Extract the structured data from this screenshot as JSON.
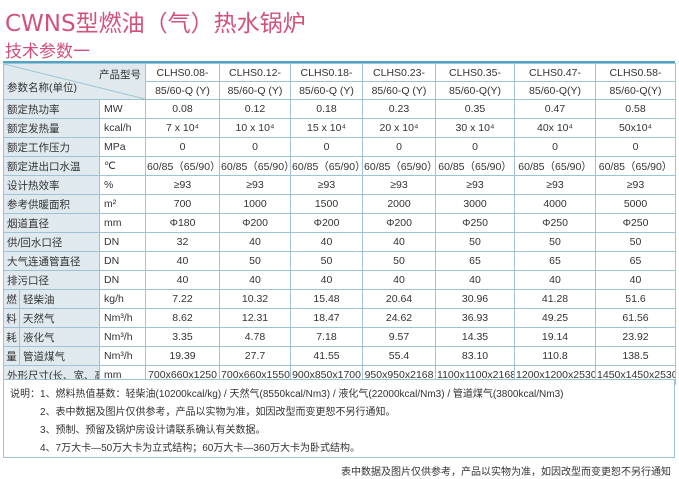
{
  "title": "CWNS型燃油（气）热水锅炉",
  "subtitle": "技术参数一",
  "table": {
    "header_product_label": "产品型号",
    "header_param_label": "参数名称(单位)",
    "models": [
      [
        "CLHS0.08-",
        "85/60-Q (Y)"
      ],
      [
        "CLHS0.12-",
        "85/60-Q (Y)"
      ],
      [
        "CLHS0.18-",
        "85/60-Q (Y)"
      ],
      [
        "CLHS0.23-",
        "85/60-Q (Y)"
      ],
      [
        "CLHS0.35-",
        "85/60-Q(Y)"
      ],
      [
        "CLHS0.47-",
        "85/60-Q(Y)"
      ],
      [
        "CLHS0.58-",
        "85/60-Q(Y)"
      ]
    ],
    "rows": [
      {
        "name": "额定热功率",
        "unit": "MW",
        "values": [
          "0.08",
          "0.12",
          "0.18",
          "0.23",
          "0.35",
          "0.47",
          "0.58"
        ]
      },
      {
        "name": "额定发热量",
        "unit": "kcal/h",
        "values": [
          "7 x 10⁴",
          "10 x 10⁴",
          "15 x 10⁴",
          "20 x 10⁴",
          "30 x 10⁴",
          "40x 10⁴",
          "50x10⁴"
        ]
      },
      {
        "name": "额定工作压力",
        "unit": "MPa",
        "values": [
          "0",
          "0",
          "0",
          "0",
          "0",
          "0",
          "0"
        ]
      },
      {
        "name": "额定进出口水温",
        "unit": "℃",
        "values": [
          "60/85（65/90）",
          "60/85（65/90）",
          "60/85（65/90）",
          "60/85（65/90）",
          "60/85（65/90）",
          "60/85（65/90）",
          "60/85（65/90）"
        ]
      },
      {
        "name": "设计热效率",
        "unit": "%",
        "values": [
          "≥93",
          "≥93",
          "≥93",
          "≥93",
          "≥93",
          "≥93",
          "≥93"
        ]
      },
      {
        "name": "参考供暖面积",
        "unit": "m²",
        "values": [
          "700",
          "1000",
          "1500",
          "2000",
          "3000",
          "4000",
          "5000"
        ]
      },
      {
        "name": "烟道直径",
        "unit": "mm",
        "values": [
          "Φ180",
          "Φ200",
          "Φ200",
          "Φ200",
          "Φ250",
          "Φ250",
          "Φ250"
        ]
      },
      {
        "name": "供/回水口径",
        "unit": "DN",
        "values": [
          "32",
          "40",
          "40",
          "40",
          "50",
          "50",
          "50"
        ]
      },
      {
        "name": "大气连通管直径",
        "unit": "DN",
        "values": [
          "40",
          "50",
          "50",
          "50",
          "65",
          "65",
          "65"
        ]
      },
      {
        "name": "排污口径",
        "unit": "DN",
        "values": [
          "40",
          "40",
          "40",
          "40",
          "40",
          "40",
          "40"
        ]
      }
    ],
    "fuel_label_chars": [
      "燃",
      "料",
      "耗",
      "量"
    ],
    "fuel_rows": [
      {
        "name": "轻柴油",
        "unit": "kg/h",
        "values": [
          "7.22",
          "10.32",
          "15.48",
          "20.64",
          "30.96",
          "41.28",
          "51.6"
        ]
      },
      {
        "name": "天然气",
        "unit": "Nm³/h",
        "values": [
          "8.62",
          "12.31",
          "18.47",
          "24.62",
          "36.93",
          "49.25",
          "61.56"
        ]
      },
      {
        "name": "液化气",
        "unit": "Nm³/h",
        "values": [
          "3.35",
          "4.78",
          "7.18",
          "9.57",
          "14.35",
          "19.14",
          "23.92"
        ]
      },
      {
        "name": "管道煤气",
        "unit": "Nm³/h",
        "values": [
          "19.39",
          "27.7",
          "41.55",
          "55.4",
          "83.10",
          "110.8",
          "138.5"
        ]
      }
    ],
    "dimension_row": {
      "name": "外形尺寸(长、宽、高)",
      "unit": "mm",
      "values": [
        "700x660x1250",
        "700x660x1550",
        "900x850x1700",
        "950x950x2168",
        "1100x1100x2168",
        "1200x1200x2530",
        "1450x1450x2530"
      ]
    }
  },
  "notes": [
    "说明：1、燃料热值基数：轻柴油(10200kcal/kg) / 天然气(8550kcal/Nm3) / 液化气(22000kcal/Nm3) / 管道煤气(3800kcal/Nm3)",
    "2、表中数据及图片仅供参考，产品以实物为准，如因改型而变更恕不另行通知。",
    "3、预制、预留及锅炉房设计请联系确认有关数据。",
    "4、7万大卡—50万大卡为立式结构；60万大卡—360万大卡为卧式结构。"
  ],
  "footer": "表中数据及图片仅供参考，产品以实物为准，如因改型而变更恕不另行通知",
  "colors": {
    "title": "#d2527a",
    "rule": "#4da3c8",
    "label_bg": "#dfe9ee",
    "border": "#9fc3d6"
  }
}
